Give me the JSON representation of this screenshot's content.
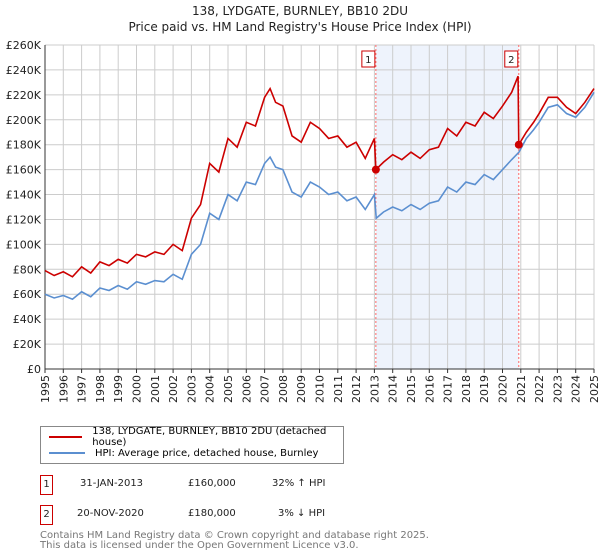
{
  "chart_data": {
    "type": "line",
    "title": "138, LYDGATE, BURNLEY, BB10 2DU",
    "subtitle": "Price paid vs. HM Land Registry's House Price Index (HPI)",
    "xlim": [
      1995,
      2025
    ],
    "ylim": [
      0,
      260000
    ],
    "x_ticks": [
      "1995",
      "1996",
      "1997",
      "1998",
      "1999",
      "2000",
      "2001",
      "2002",
      "2003",
      "2004",
      "2005",
      "2006",
      "2007",
      "2008",
      "2009",
      "2010",
      "2011",
      "2012",
      "2013",
      "2014",
      "2015",
      "2016",
      "2017",
      "2018",
      "2019",
      "2020",
      "2021",
      "2022",
      "2023",
      "2024",
      "2025"
    ],
    "y_ticks": [
      "£0",
      "£20K",
      "£40K",
      "£60K",
      "£80K",
      "£100K",
      "£120K",
      "£140K",
      "£160K",
      "£180K",
      "£200K",
      "£220K",
      "£240K",
      "£260K"
    ],
    "grid": true,
    "hpi_series": {
      "name": "HPI: Average price, detached house, Burnley",
      "color": "#5b8fd0",
      "x": [
        1995,
        1995.5,
        1996,
        1996.5,
        1997,
        1997.5,
        1998,
        1998.5,
        1999,
        1999.5,
        2000,
        2000.5,
        2001,
        2001.5,
        2002,
        2002.5,
        2003,
        2003.5,
        2004,
        2004.5,
        2005,
        2005.5,
        2006,
        2006.5,
        2007,
        2007.3,
        2007.6,
        2008,
        2008.5,
        2009,
        2009.5,
        2010,
        2010.5,
        2011,
        2011.5,
        2012,
        2012.5,
        2013,
        2013.1,
        2013.5,
        2014,
        2014.5,
        2015,
        2015.5,
        2016,
        2016.5,
        2017,
        2017.5,
        2018,
        2018.5,
        2019,
        2019.5,
        2020,
        2020.5,
        2020.9,
        2021.3,
        2021.7,
        2022,
        2022.5,
        2023,
        2023.5,
        2024,
        2024.5,
        2025
      ],
      "y": [
        60000,
        57000,
        59000,
        56000,
        62000,
        58000,
        65000,
        63000,
        67000,
        64000,
        70000,
        68000,
        71000,
        70000,
        76000,
        72000,
        92000,
        100000,
        125000,
        120000,
        140000,
        135000,
        150000,
        148000,
        165000,
        170000,
        162000,
        160000,
        142000,
        138000,
        150000,
        146000,
        140000,
        142000,
        135000,
        138000,
        128000,
        140000,
        121000,
        126000,
        130000,
        127000,
        132000,
        128000,
        133000,
        135000,
        146000,
        142000,
        150000,
        148000,
        156000,
        152000,
        160000,
        168000,
        174000,
        185000,
        192000,
        198000,
        210000,
        212000,
        205000,
        202000,
        210000,
        222000
      ]
    },
    "price_series": {
      "name": "138, LYDGATE, BURNLEY, BB10 2DU (detached house)",
      "color": "#cc0000",
      "x": [
        1995,
        1995.5,
        1996,
        1996.5,
        1997,
        1997.5,
        1998,
        1998.5,
        1999,
        1999.5,
        2000,
        2000.5,
        2001,
        2001.5,
        2002,
        2002.5,
        2003,
        2003.5,
        2004,
        2004.5,
        2005,
        2005.5,
        2006,
        2006.5,
        2007,
        2007.3,
        2007.6,
        2008,
        2008.5,
        2009,
        2009.5,
        2010,
        2010.5,
        2011,
        2011.5,
        2012,
        2012.5,
        2013,
        2013.08,
        2013.5,
        2014,
        2014.5,
        2015,
        2015.5,
        2016,
        2016.5,
        2017,
        2017.5,
        2018,
        2018.5,
        2019,
        2019.5,
        2020,
        2020.5,
        2020.85,
        2020.89,
        2021.3,
        2021.7,
        2022,
        2022.5,
        2023,
        2023.5,
        2024,
        2024.5,
        2025
      ],
      "y": [
        79000,
        75000,
        78000,
        74000,
        82000,
        77000,
        86000,
        83000,
        88000,
        85000,
        92000,
        90000,
        94000,
        92000,
        100000,
        95000,
        121000,
        132000,
        165000,
        158000,
        185000,
        178000,
        198000,
        195000,
        218000,
        225000,
        214000,
        211000,
        187000,
        182000,
        198000,
        193000,
        185000,
        187000,
        178000,
        182000,
        169000,
        185000,
        160000,
        166000,
        172000,
        168000,
        174000,
        169000,
        176000,
        178000,
        193000,
        187000,
        198000,
        195000,
        206000,
        201000,
        211000,
        222000,
        235000,
        180000,
        190000,
        198000,
        205000,
        218000,
        218000,
        210000,
        205000,
        214000,
        225000
      ]
    },
    "sales": [
      {
        "label": "1",
        "x": 2013.08,
        "y": 160000,
        "date": "31-JAN-2013",
        "price": "£160,000",
        "hpi_diff": "32% ↑ HPI"
      },
      {
        "label": "2",
        "x": 2020.89,
        "y": 180000,
        "date": "20-NOV-2020",
        "price": "£180,000",
        "hpi_diff": "3% ↓ HPI"
      }
    ]
  },
  "legend": {
    "price": "138, LYDGATE, BURNLEY, BB10 2DU (detached house)",
    "hpi": "HPI: Average price, detached house, Burnley"
  },
  "footer": {
    "line1": "Contains HM Land Registry data © Crown copyright and database right 2025.",
    "line2": "This data is licensed under the Open Government Licence v3.0."
  },
  "colors": {
    "shade": "#eef3fc",
    "grid": "#cccccc",
    "red": "#cc0000",
    "blue": "#5b8fd0"
  }
}
